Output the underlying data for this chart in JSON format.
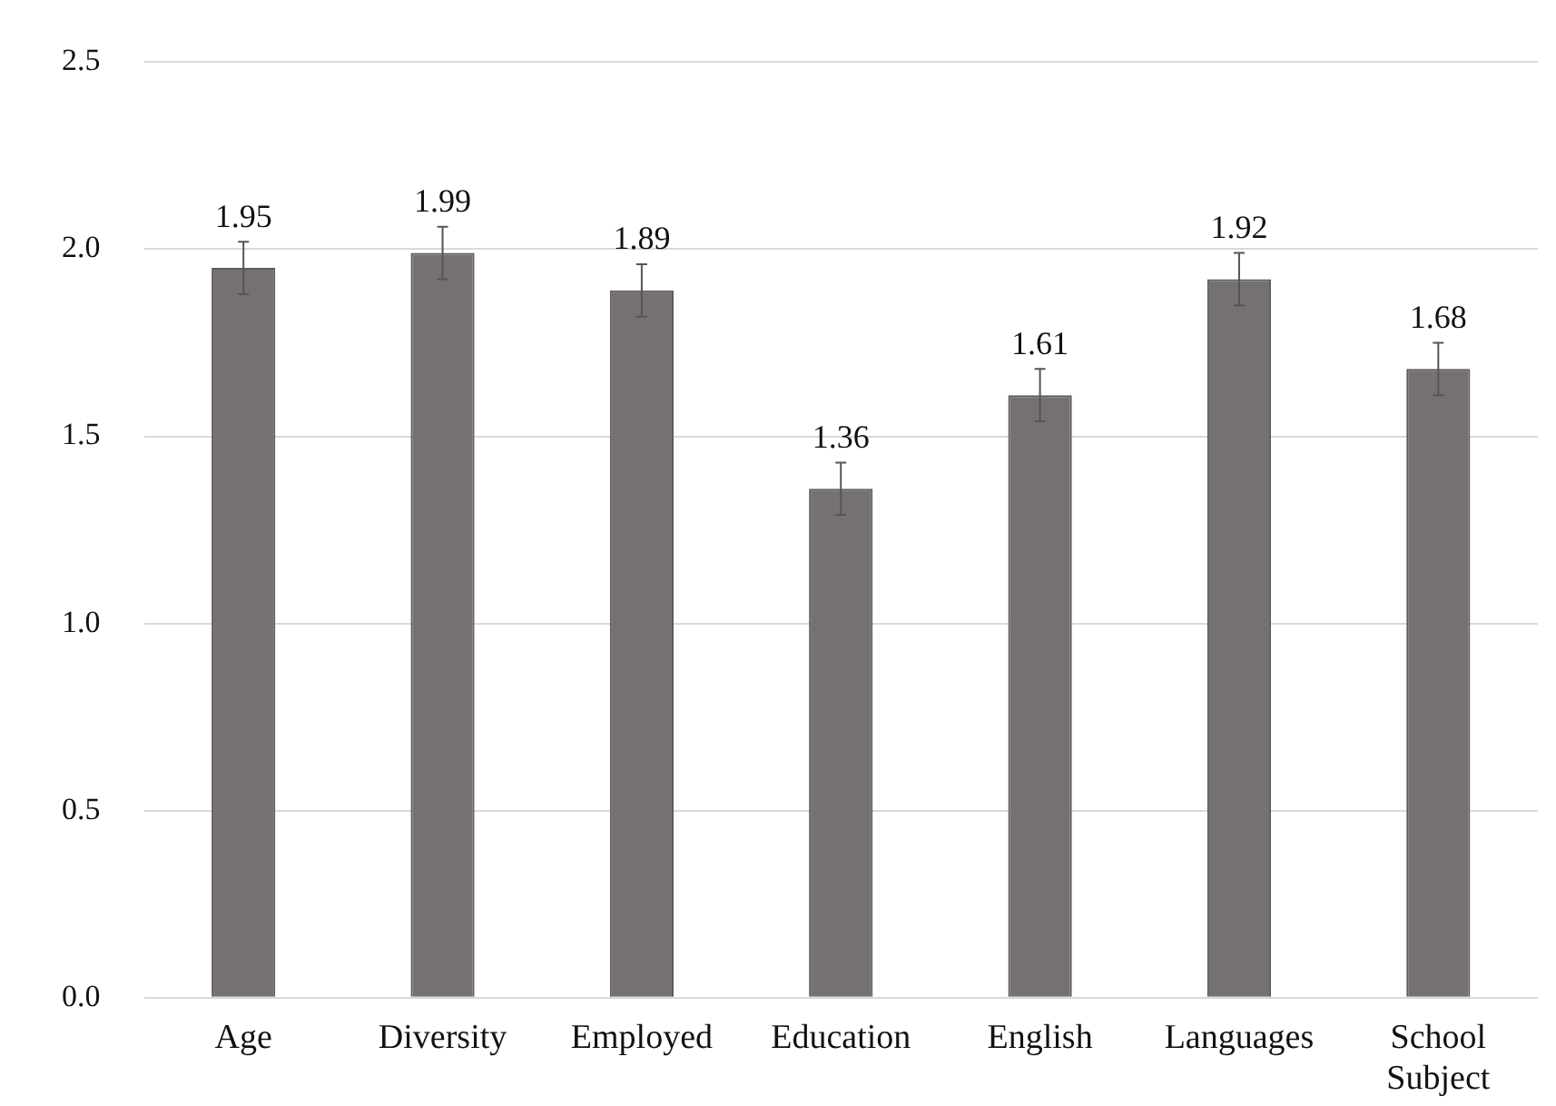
{
  "chart_data": {
    "type": "bar",
    "categories": [
      "Age",
      "Diversity",
      "Employed",
      "Education",
      "English",
      "Languages",
      "School Subject"
    ],
    "values": [
      1.95,
      1.99,
      1.89,
      1.36,
      1.61,
      1.92,
      1.68
    ],
    "errors": [
      0.07,
      0.07,
      0.07,
      0.07,
      0.07,
      0.07,
      0.07
    ],
    "color": "#757170",
    "ylim": [
      0,
      2.5
    ],
    "yticks": [
      {
        "value": 0,
        "label": "0.0"
      },
      0.5,
      {
        "value": 1,
        "label": "1.0"
      },
      1.5,
      {
        "value": 2,
        "label": "2.0"
      },
      2.5
    ],
    "grid": "y",
    "data_labels": true,
    "legend": false
  }
}
